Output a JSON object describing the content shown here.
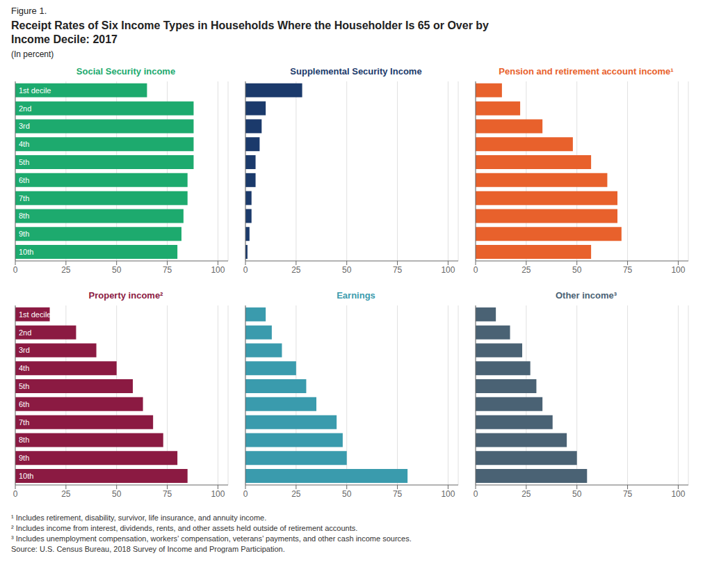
{
  "figure_label": "Figure 1.",
  "title": [
    "Receipt Rates of Six Income Types in Households Where the Householder Is 65 or Over by",
    "Income Decile: 2017"
  ],
  "subtitle": "(In percent)",
  "footnotes": [
    "¹ Includes retirement, disability, survivor, life insurance, and annuity income.",
    "² Includes income from interest, dividends, rents, and other assets held outside of retirement accounts.",
    "³ Includes unemployment compensation, workers’ compensation, veterans’ payments, and other cash income sources.",
    "Source: U.S. Census Bureau, 2018 Survey of Income and Program Participation."
  ],
  "chart_data": [
    {
      "type": "bar",
      "orientation": "horizontal",
      "title": "Social Security income",
      "categories": [
        "1st decile",
        "2nd",
        "3rd",
        "4th",
        "5th",
        "6th",
        "7th",
        "8th",
        "9th",
        "10th"
      ],
      "values": [
        65,
        88,
        88,
        88,
        88,
        85,
        85,
        83,
        82,
        80
      ],
      "color": "#1DAA6E",
      "xlim": [
        0,
        105
      ],
      "xticks": [
        0,
        25,
        50,
        75,
        100
      ],
      "grid": true,
      "tick_labels": "x"
    },
    {
      "type": "bar",
      "orientation": "horizontal",
      "title": "Supplemental Security Income",
      "categories": [
        null,
        null,
        null,
        null,
        null,
        null,
        null,
        null,
        null,
        null
      ],
      "values": [
        28,
        10,
        8,
        7,
        5,
        5,
        3,
        3,
        2,
        1
      ],
      "color": "#1B3A6B",
      "xlim": [
        0,
        105
      ],
      "xticks": [
        0,
        25,
        50,
        75,
        100
      ],
      "grid": true,
      "tick_labels": "x"
    },
    {
      "type": "bar",
      "orientation": "horizontal",
      "title": "Pension and retirement account income¹",
      "categories": [
        null,
        null,
        null,
        null,
        null,
        null,
        null,
        null,
        null,
        null
      ],
      "values": [
        13,
        22,
        33,
        48,
        57,
        65,
        70,
        70,
        72,
        57
      ],
      "color": "#E8612C",
      "xlim": [
        0,
        105
      ],
      "xticks": [
        0,
        25,
        50,
        75,
        100
      ],
      "grid": true,
      "tick_labels": "x"
    },
    {
      "type": "bar",
      "orientation": "horizontal",
      "title": "Property income²",
      "categories": [
        "1st decile",
        "2nd",
        "3rd",
        "4th",
        "5th",
        "6th",
        "7th",
        "8th",
        "9th",
        "10th"
      ],
      "values": [
        17,
        30,
        40,
        50,
        58,
        63,
        68,
        73,
        80,
        85
      ],
      "color": "#8B1A42",
      "xlim": [
        0,
        105
      ],
      "xticks": [
        0,
        25,
        50,
        75,
        100
      ],
      "grid": true,
      "tick_labels": "x"
    },
    {
      "type": "bar",
      "orientation": "horizontal",
      "title": "Earnings",
      "categories": [
        null,
        null,
        null,
        null,
        null,
        null,
        null,
        null,
        null,
        null
      ],
      "values": [
        10,
        13,
        18,
        25,
        30,
        35,
        45,
        48,
        50,
        80
      ],
      "color": "#3A9BAD",
      "xlim": [
        0,
        105
      ],
      "xticks": [
        0,
        25,
        50,
        75,
        100
      ],
      "grid": true,
      "tick_labels": "x"
    },
    {
      "type": "bar",
      "orientation": "horizontal",
      "title": "Other income³",
      "categories": [
        null,
        null,
        null,
        null,
        null,
        null,
        null,
        null,
        null,
        null
      ],
      "values": [
        10,
        17,
        23,
        27,
        30,
        33,
        38,
        45,
        50,
        55
      ],
      "color": "#4A6274",
      "xlim": [
        0,
        105
      ],
      "xticks": [
        0,
        25,
        50,
        75,
        100
      ],
      "grid": true,
      "tick_labels": "x"
    }
  ]
}
